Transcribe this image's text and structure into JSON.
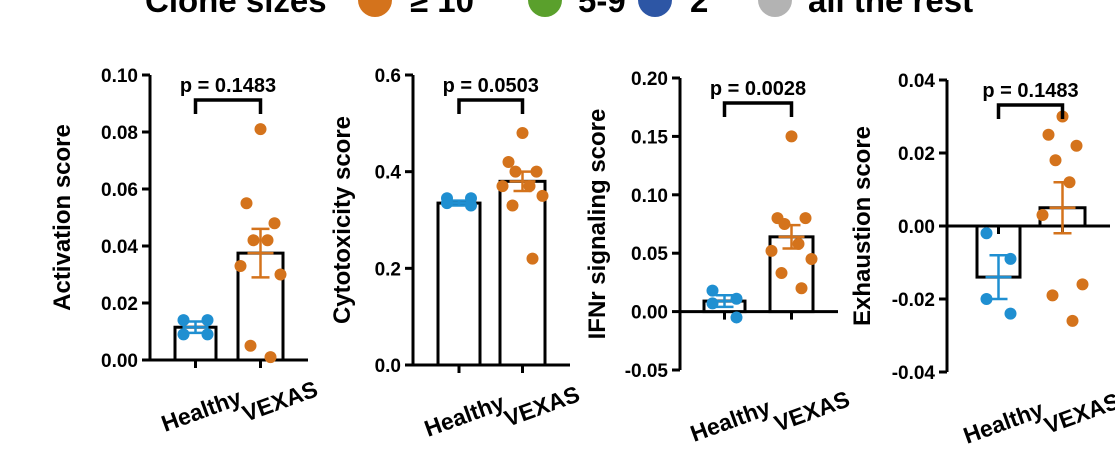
{
  "legend": {
    "title": "Clone sizes",
    "items": [
      {
        "label": "≥ 10",
        "color": "#d4731c"
      },
      {
        "label": "5-9",
        "color": "#5aa02c"
      },
      {
        "label": "2",
        "color": "#2d56a5"
      },
      {
        "label": "all the rest",
        "color": "#b3b3b3"
      }
    ]
  },
  "chart_data": [
    {
      "type": "bar",
      "ylabel": "Activation score",
      "categories": [
        "Healthy",
        "VEXAS"
      ],
      "ylim": [
        0,
        0.1
      ],
      "yticks": [
        "0.00",
        "0.02",
        "0.04",
        "0.06",
        "0.08",
        "0.10"
      ],
      "pvalue": "p = 0.1483",
      "bars": [
        {
          "mean": 0.0115,
          "sem": 0.002,
          "color": "#1f8fd1",
          "points": [
            0.014,
            0.014,
            0.009,
            0.009
          ]
        },
        {
          "mean": 0.0375,
          "sem": 0.0085,
          "color": "#d4731c",
          "points": [
            0.081,
            0.055,
            0.048,
            0.042,
            0.042,
            0.033,
            0.03,
            0.005,
            0.001
          ]
        }
      ]
    },
    {
      "type": "bar",
      "ylabel": "Cytotoxicity score",
      "categories": [
        "Healthy",
        "VEXAS"
      ],
      "ylim": [
        0,
        0.6
      ],
      "yticks": [
        "0.0",
        "0.2",
        "0.4",
        "0.6"
      ],
      "pvalue": "p = 0.0503",
      "bars": [
        {
          "mean": 0.335,
          "sem": 0.005,
          "color": "#1f8fd1",
          "points": [
            0.345,
            0.345,
            0.335,
            0.33
          ]
        },
        {
          "mean": 0.38,
          "sem": 0.02,
          "color": "#d4731c",
          "points": [
            0.48,
            0.42,
            0.4,
            0.4,
            0.37,
            0.37,
            0.35,
            0.33,
            0.22
          ]
        }
      ]
    },
    {
      "type": "bar",
      "ylabel": "IFNr signaling score",
      "categories": [
        "Healthy",
        "VEXAS"
      ],
      "ylim": [
        -0.05,
        0.2
      ],
      "yticks": [
        "-0.05",
        "0.00",
        "0.05",
        "0.10",
        "0.15",
        "0.20"
      ],
      "pvalue": "p = 0.0028",
      "bars": [
        {
          "mean": 0.009,
          "sem": 0.005,
          "color": "#1f8fd1",
          "points": [
            0.018,
            0.011,
            0.007,
            -0.005
          ]
        },
        {
          "mean": 0.064,
          "sem": 0.01,
          "color": "#d4731c",
          "points": [
            0.15,
            0.08,
            0.08,
            0.075,
            0.058,
            0.052,
            0.045,
            0.033,
            0.02
          ]
        }
      ]
    },
    {
      "type": "bar",
      "ylabel": "Exhaustion score",
      "categories": [
        "Healthy",
        "VEXAS"
      ],
      "ylim": [
        -0.04,
        0.04
      ],
      "yticks": [
        "-0.04",
        "-0.02",
        "0.00",
        "0.02",
        "0.04"
      ],
      "pvalue": "p = 0.1483",
      "bars": [
        {
          "mean": -0.014,
          "sem": 0.006,
          "color": "#1f8fd1",
          "points": [
            -0.002,
            -0.009,
            -0.02,
            -0.024
          ]
        },
        {
          "mean": 0.005,
          "sem": 0.007,
          "color": "#d4731c",
          "points": [
            0.03,
            0.025,
            0.022,
            0.018,
            0.012,
            0.003,
            -0.016,
            -0.019,
            -0.026
          ]
        }
      ]
    }
  ]
}
